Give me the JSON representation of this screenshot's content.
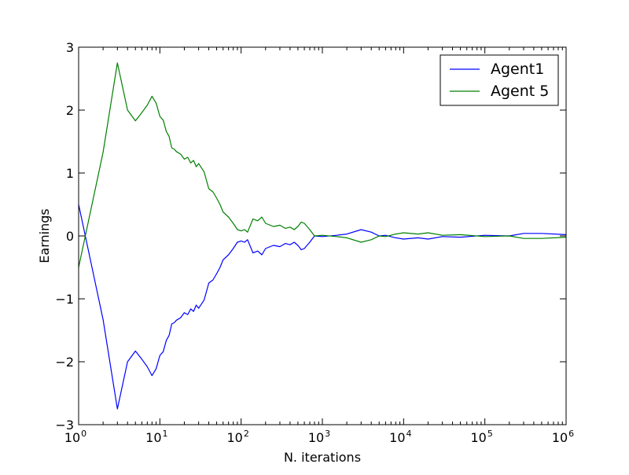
{
  "chart_data": {
    "type": "line",
    "title": "",
    "xlabel": "N. iterations",
    "ylabel": "Earnings",
    "xscale": "log",
    "xlim": [
      1,
      1000000
    ],
    "ylim": [
      -3,
      3
    ],
    "grid": false,
    "legend_position": "top-right",
    "x_ticks": [
      {
        "value": 1,
        "base": "10",
        "exp": "0"
      },
      {
        "value": 10,
        "base": "10",
        "exp": "1"
      },
      {
        "value": 100,
        "base": "10",
        "exp": "2"
      },
      {
        "value": 1000,
        "base": "10",
        "exp": "3"
      },
      {
        "value": 10000,
        "base": "10",
        "exp": "4"
      },
      {
        "value": 100000,
        "base": "10",
        "exp": "5"
      },
      {
        "value": 1000000,
        "base": "10",
        "exp": "6"
      }
    ],
    "y_ticks": [
      {
        "value": -3,
        "label": "−3"
      },
      {
        "value": -2,
        "label": "−2"
      },
      {
        "value": -1,
        "label": "−1"
      },
      {
        "value": 0,
        "label": "0"
      },
      {
        "value": 1,
        "label": "1"
      },
      {
        "value": 2,
        "label": "2"
      },
      {
        "value": 3,
        "label": "3"
      }
    ],
    "series": [
      {
        "name": "Agent1",
        "color": "#0000ff",
        "points": [
          [
            1,
            0.5
          ],
          [
            2,
            -1.33
          ],
          [
            3,
            -2.75
          ],
          [
            4,
            -2.0
          ],
          [
            5,
            -1.83
          ],
          [
            6,
            -1.96
          ],
          [
            7,
            -2.08
          ],
          [
            8,
            -2.22
          ],
          [
            9,
            -2.11
          ],
          [
            10,
            -1.9
          ],
          [
            11,
            -1.84
          ],
          [
            12,
            -1.66
          ],
          [
            13,
            -1.58
          ],
          [
            14,
            -1.4
          ],
          [
            15,
            -1.38
          ],
          [
            16,
            -1.34
          ],
          [
            18,
            -1.3
          ],
          [
            20,
            -1.22
          ],
          [
            22,
            -1.25
          ],
          [
            24,
            -1.16
          ],
          [
            26,
            -1.2
          ],
          [
            28,
            -1.1
          ],
          [
            30,
            -1.15
          ],
          [
            35,
            -1.02
          ],
          [
            40,
            -0.75
          ],
          [
            45,
            -0.7
          ],
          [
            50,
            -0.6
          ],
          [
            55,
            -0.5
          ],
          [
            60,
            -0.38
          ],
          [
            70,
            -0.3
          ],
          [
            80,
            -0.2
          ],
          [
            90,
            -0.1
          ],
          [
            100,
            -0.08
          ],
          [
            110,
            -0.1
          ],
          [
            120,
            -0.06
          ],
          [
            140,
            -0.27
          ],
          [
            160,
            -0.24
          ],
          [
            180,
            -0.3
          ],
          [
            200,
            -0.2
          ],
          [
            250,
            -0.15
          ],
          [
            300,
            -0.17
          ],
          [
            350,
            -0.12
          ],
          [
            400,
            -0.14
          ],
          [
            450,
            -0.1
          ],
          [
            500,
            -0.15
          ],
          [
            550,
            -0.22
          ],
          [
            600,
            -0.2
          ],
          [
            700,
            -0.1
          ],
          [
            800,
            0.0
          ],
          [
            1000,
            -0.01
          ],
          [
            1500,
            0.01
          ],
          [
            2000,
            0.03
          ],
          [
            3000,
            0.1
          ],
          [
            4000,
            0.06
          ],
          [
            5000,
            0.0
          ],
          [
            6000,
            0.01
          ],
          [
            8000,
            -0.03
          ],
          [
            10000,
            -0.05
          ],
          [
            15000,
            -0.03
          ],
          [
            20000,
            -0.05
          ],
          [
            30000,
            -0.01
          ],
          [
            50000,
            -0.02
          ],
          [
            100000,
            0.01
          ],
          [
            200000,
            0.0
          ],
          [
            300000,
            0.04
          ],
          [
            500000,
            0.04
          ],
          [
            1000000,
            0.02
          ]
        ]
      },
      {
        "name": "Agent 5",
        "color": "#008000",
        "points": [
          [
            1,
            -0.5
          ],
          [
            2,
            1.33
          ],
          [
            3,
            2.75
          ],
          [
            4,
            2.0
          ],
          [
            5,
            1.83
          ],
          [
            6,
            1.96
          ],
          [
            7,
            2.08
          ],
          [
            8,
            2.22
          ],
          [
            9,
            2.11
          ],
          [
            10,
            1.9
          ],
          [
            11,
            1.84
          ],
          [
            12,
            1.66
          ],
          [
            13,
            1.58
          ],
          [
            14,
            1.4
          ],
          [
            15,
            1.38
          ],
          [
            16,
            1.34
          ],
          [
            18,
            1.3
          ],
          [
            20,
            1.22
          ],
          [
            22,
            1.25
          ],
          [
            24,
            1.16
          ],
          [
            26,
            1.2
          ],
          [
            28,
            1.1
          ],
          [
            30,
            1.15
          ],
          [
            35,
            1.02
          ],
          [
            40,
            0.75
          ],
          [
            45,
            0.7
          ],
          [
            50,
            0.6
          ],
          [
            55,
            0.5
          ],
          [
            60,
            0.38
          ],
          [
            70,
            0.3
          ],
          [
            80,
            0.2
          ],
          [
            90,
            0.1
          ],
          [
            100,
            0.08
          ],
          [
            110,
            0.1
          ],
          [
            120,
            0.06
          ],
          [
            140,
            0.27
          ],
          [
            160,
            0.24
          ],
          [
            180,
            0.3
          ],
          [
            200,
            0.2
          ],
          [
            250,
            0.15
          ],
          [
            300,
            0.17
          ],
          [
            350,
            0.12
          ],
          [
            400,
            0.14
          ],
          [
            450,
            0.1
          ],
          [
            500,
            0.15
          ],
          [
            550,
            0.22
          ],
          [
            600,
            0.2
          ],
          [
            700,
            0.1
          ],
          [
            800,
            0.0
          ],
          [
            1000,
            0.01
          ],
          [
            1500,
            -0.01
          ],
          [
            2000,
            -0.03
          ],
          [
            3000,
            -0.1
          ],
          [
            4000,
            -0.06
          ],
          [
            5000,
            0.0
          ],
          [
            6000,
            -0.01
          ],
          [
            8000,
            0.03
          ],
          [
            10000,
            0.05
          ],
          [
            15000,
            0.03
          ],
          [
            20000,
            0.05
          ],
          [
            30000,
            0.01
          ],
          [
            50000,
            0.02
          ],
          [
            100000,
            -0.01
          ],
          [
            200000,
            0.0
          ],
          [
            300000,
            -0.04
          ],
          [
            500000,
            -0.04
          ],
          [
            1000000,
            -0.02
          ]
        ]
      }
    ]
  }
}
